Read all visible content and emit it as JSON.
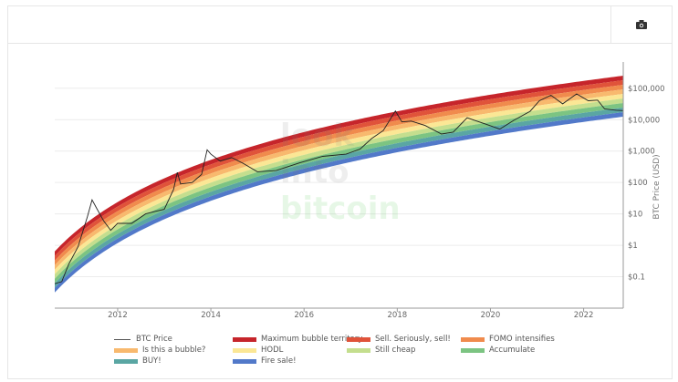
{
  "toolbar": {
    "camera_icon": "camera-icon"
  },
  "watermark": {
    "line1": "look",
    "line2": "into",
    "line3": "bitcoin"
  },
  "chart_data": {
    "type": "line",
    "title": "",
    "xlabel": "",
    "ylabel": "BTC Price (USD)",
    "y_scale": "log",
    "ylim": [
      0.01,
      600000
    ],
    "xlim": [
      2010.65,
      2022.85
    ],
    "x_ticks": [
      "2012",
      "2014",
      "2016",
      "2018",
      "2020",
      "2022"
    ],
    "y_ticks": [
      {
        "value": 0.1,
        "label": "$0.1"
      },
      {
        "value": 1,
        "label": "$1"
      },
      {
        "value": 10,
        "label": "$10"
      },
      {
        "value": 100,
        "label": "$100"
      },
      {
        "value": 1000,
        "label": "$1,000"
      },
      {
        "value": 10000,
        "label": "$10,000"
      },
      {
        "value": 100000,
        "label": "$100,000"
      }
    ],
    "grid": true,
    "legend_position": "bottom",
    "price_series": {
      "name": "BTC Price",
      "color": "#222222",
      "points": [
        [
          2010.65,
          0.06
        ],
        [
          2010.8,
          0.07
        ],
        [
          2010.95,
          0.25
        ],
        [
          2011.15,
          0.9
        ],
        [
          2011.35,
          8
        ],
        [
          2011.45,
          28
        ],
        [
          2011.55,
          15
        ],
        [
          2011.7,
          6
        ],
        [
          2011.85,
          3
        ],
        [
          2012.0,
          5
        ],
        [
          2012.3,
          5
        ],
        [
          2012.6,
          10
        ],
        [
          2012.8,
          12
        ],
        [
          2013.0,
          14
        ],
        [
          2013.2,
          60
        ],
        [
          2013.28,
          210
        ],
        [
          2013.35,
          90
        ],
        [
          2013.6,
          100
        ],
        [
          2013.8,
          180
        ],
        [
          2013.92,
          1100
        ],
        [
          2014.0,
          800
        ],
        [
          2014.2,
          480
        ],
        [
          2014.45,
          620
        ],
        [
          2014.7,
          400
        ],
        [
          2015.0,
          220
        ],
        [
          2015.4,
          240
        ],
        [
          2015.9,
          420
        ],
        [
          2016.4,
          680
        ],
        [
          2016.9,
          800
        ],
        [
          2017.2,
          1150
        ],
        [
          2017.45,
          2500
        ],
        [
          2017.7,
          4500
        ],
        [
          2017.96,
          19000
        ],
        [
          2018.1,
          8500
        ],
        [
          2018.3,
          9000
        ],
        [
          2018.6,
          6500
        ],
        [
          2018.95,
          3500
        ],
        [
          2019.2,
          4000
        ],
        [
          2019.5,
          11500
        ],
        [
          2019.9,
          7200
        ],
        [
          2020.2,
          5000
        ],
        [
          2020.5,
          9500
        ],
        [
          2020.85,
          18500
        ],
        [
          2021.05,
          40000
        ],
        [
          2021.3,
          60000
        ],
        [
          2021.55,
          32000
        ],
        [
          2021.85,
          66000
        ],
        [
          2022.1,
          40000
        ],
        [
          2022.3,
          42000
        ],
        [
          2022.45,
          22000
        ],
        [
          2022.7,
          20000
        ],
        [
          2022.85,
          19500
        ]
      ]
    },
    "bands": [
      {
        "name": "Maximum bubble territory",
        "color": "#c6252b"
      },
      {
        "name": "Sell. Seriously, sell!",
        "color": "#e0533a"
      },
      {
        "name": "FOMO intensifies",
        "color": "#f08b4d"
      },
      {
        "name": "Is this a bubble?",
        "color": "#f8b96e"
      },
      {
        "name": "HODL",
        "color": "#fbe795"
      },
      {
        "name": "Still cheap",
        "color": "#c4de8e"
      },
      {
        "name": "Accumulate",
        "color": "#7cc482"
      },
      {
        "name": "BUY!",
        "color": "#5aa6a3"
      },
      {
        "name": "Fire sale!",
        "color": "#5279c9"
      }
    ]
  }
}
